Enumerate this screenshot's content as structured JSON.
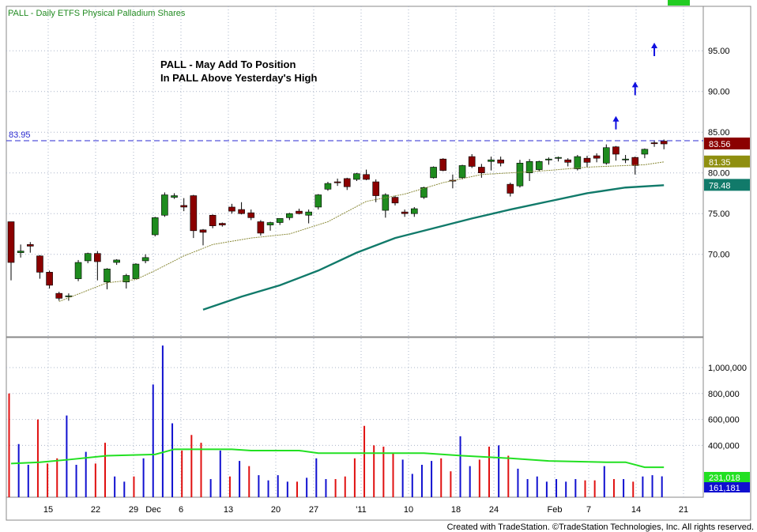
{
  "header": {
    "title": "PALL - Daily  ETFS Physical Palladium Shares",
    "annotation_line1": "PALL - May Add To Position",
    "annotation_line2": "In PALL Above Yesterday's High"
  },
  "footer": {
    "credit": "Created with TradeStation. ©TradeStation Technologies, Inc. All rights reserved."
  },
  "colors": {
    "up": "#1e8b1e",
    "down": "#8b0000",
    "ma_slow": "#117a6a",
    "ma_fast": "#8b8b3a",
    "vol_avg": "#22e022",
    "vol_up": "#1010d0",
    "vol_down": "#e01010",
    "resistance": "#2a2ad0",
    "arrow": "#1010e0",
    "grid": "#aab4c8",
    "status_box": "#22cc22"
  },
  "chart_data": [
    {
      "type": "candlestick",
      "title": "PALL - Daily  ETFS Physical Palladium Shares",
      "ylim": [
        66.5,
        99
      ],
      "yticks": [
        "70.00",
        "75.00",
        "80.00",
        "85.00",
        "90.00",
        "95.00"
      ],
      "xticks": [
        "15",
        "22",
        "29",
        "Dec",
        "6",
        "13",
        "20",
        "27",
        "'11",
        "10",
        "18",
        "24",
        "Feb",
        "7",
        "14",
        "21"
      ],
      "resistance": {
        "value": 83.95,
        "label": "83.95"
      },
      "price_labels": [
        {
          "label": "83.56",
          "value": 83.56,
          "series": "last"
        },
        {
          "label": "81.35",
          "value": 81.35,
          "series": "ma_fast"
        },
        {
          "label": "78.48",
          "value": 78.48,
          "series": "ma_slow"
        }
      ],
      "candles": [
        [
          74.0,
          74.0,
          66.8,
          69.0,
          "down"
        ],
        [
          70.4,
          71.2,
          69.6,
          70.2,
          "up"
        ],
        [
          71.2,
          71.5,
          70.2,
          71.0,
          "down"
        ],
        [
          69.8,
          69.9,
          67.0,
          67.8,
          "down"
        ],
        [
          67.8,
          68.0,
          65.8,
          66.2,
          "down"
        ],
        [
          65.2,
          65.4,
          64.3,
          64.6,
          "down"
        ],
        [
          64.8,
          65.2,
          64.3,
          64.9,
          "up"
        ],
        [
          67.0,
          69.3,
          66.7,
          69.0,
          "up"
        ],
        [
          69.2,
          70.2,
          68.9,
          70.1,
          "up"
        ],
        [
          70.1,
          70.4,
          66.8,
          69.1,
          "down"
        ],
        [
          68.2,
          68.3,
          65.7,
          66.6,
          "up"
        ],
        [
          69.0,
          69.4,
          68.7,
          69.3,
          "up"
        ],
        [
          66.6,
          67.6,
          65.8,
          67.4,
          "up"
        ],
        [
          67.0,
          68.9,
          67.0,
          68.8,
          "up"
        ],
        [
          69.2,
          70.0,
          68.9,
          69.6,
          "up"
        ],
        [
          72.4,
          74.6,
          72.2,
          74.5,
          "up"
        ],
        [
          74.8,
          77.6,
          74.6,
          77.3,
          "up"
        ],
        [
          77.2,
          77.5,
          76.8,
          77.0,
          "up"
        ],
        [
          76.0,
          76.9,
          75.3,
          75.8,
          "down"
        ],
        [
          77.2,
          77.3,
          72.0,
          72.9,
          "down"
        ],
        [
          73.0,
          73.1,
          71.1,
          72.7,
          "down"
        ],
        [
          74.8,
          74.9,
          73.2,
          73.5,
          "down"
        ],
        [
          73.8,
          73.9,
          73.4,
          73.6,
          "down"
        ],
        [
          75.8,
          76.2,
          75.0,
          75.3,
          "down"
        ],
        [
          75.5,
          76.4,
          74.9,
          75.0,
          "down"
        ],
        [
          75.1,
          75.5,
          74.2,
          74.5,
          "down"
        ],
        [
          74.0,
          74.2,
          72.3,
          72.6,
          "down"
        ],
        [
          73.6,
          74.0,
          72.9,
          73.9,
          "up"
        ],
        [
          73.9,
          74.4,
          73.6,
          74.4,
          "up"
        ],
        [
          74.5,
          75.1,
          74.2,
          75.0,
          "up"
        ],
        [
          75.3,
          75.6,
          74.9,
          75.0,
          "down"
        ],
        [
          74.8,
          75.5,
          73.8,
          75.2,
          "up"
        ],
        [
          75.8,
          77.4,
          75.5,
          77.3,
          "up"
        ],
        [
          78.0,
          78.9,
          77.8,
          78.7,
          "up"
        ],
        [
          78.8,
          79.3,
          78.4,
          78.9,
          "down"
        ],
        [
          79.3,
          79.4,
          77.9,
          78.3,
          "down"
        ],
        [
          79.2,
          80.0,
          79.0,
          79.9,
          "up"
        ],
        [
          79.8,
          80.4,
          79.1,
          79.2,
          "down"
        ],
        [
          78.9,
          79.2,
          76.4,
          77.2,
          "down"
        ],
        [
          77.3,
          77.5,
          74.5,
          75.4,
          "up"
        ],
        [
          77.0,
          77.2,
          76.0,
          76.3,
          "down"
        ],
        [
          75.2,
          75.5,
          74.6,
          75.0,
          "down"
        ],
        [
          75.0,
          75.8,
          74.6,
          75.6,
          "up"
        ],
        [
          77.0,
          78.3,
          76.8,
          78.2,
          "up"
        ],
        [
          79.4,
          80.8,
          79.3,
          80.7,
          "up"
        ],
        [
          81.7,
          81.8,
          80.2,
          80.3,
          "down"
        ],
        [
          79.1,
          79.8,
          78.1,
          79.0,
          "down"
        ],
        [
          79.4,
          81.0,
          79.2,
          80.9,
          "up"
        ],
        [
          82.0,
          82.3,
          80.6,
          80.8,
          "down"
        ],
        [
          80.7,
          81.1,
          79.4,
          80.0,
          "down"
        ],
        [
          81.4,
          82.0,
          80.3,
          81.6,
          "up"
        ],
        [
          81.6,
          82.0,
          80.8,
          81.2,
          "down"
        ],
        [
          78.6,
          78.8,
          77.1,
          77.5,
          "down"
        ],
        [
          78.4,
          81.6,
          78.2,
          81.2,
          "up"
        ],
        [
          80.0,
          81.7,
          79.0,
          81.4,
          "up"
        ],
        [
          80.4,
          81.5,
          80.2,
          81.4,
          "up"
        ],
        [
          81.7,
          81.9,
          81.0,
          81.6,
          "up"
        ],
        [
          81.8,
          82.0,
          81.4,
          81.9,
          "up"
        ],
        [
          81.6,
          81.8,
          80.8,
          81.3,
          "down"
        ],
        [
          80.5,
          82.2,
          80.3,
          82.0,
          "up"
        ],
        [
          81.8,
          82.1,
          80.7,
          81.3,
          "down"
        ],
        [
          81.8,
          82.4,
          81.3,
          82.1,
          "down"
        ],
        [
          81.2,
          83.5,
          81.0,
          83.1,
          "up"
        ],
        [
          83.2,
          83.3,
          81.5,
          82.3,
          "down"
        ],
        [
          81.6,
          82.2,
          81.2,
          81.7,
          "up"
        ],
        [
          81.9,
          82.0,
          79.8,
          80.9,
          "down"
        ],
        [
          82.3,
          83.0,
          81.8,
          82.9,
          "up"
        ],
        [
          83.7,
          84.0,
          83.2,
          83.6,
          "down"
        ],
        [
          83.9,
          84.1,
          82.9,
          83.56,
          "down"
        ]
      ],
      "ma_fast": [
        [
          5,
          64.2
        ],
        [
          10,
          66.5
        ],
        [
          13,
          66.9
        ],
        [
          15,
          68.0
        ],
        [
          18,
          69.8
        ],
        [
          21,
          71.2
        ],
        [
          25,
          72.0
        ],
        [
          29,
          72.5
        ],
        [
          33,
          74.0
        ],
        [
          37,
          76.5
        ],
        [
          41,
          77.4
        ],
        [
          45,
          78.8
        ],
        [
          49,
          79.8
        ],
        [
          52,
          80.0
        ],
        [
          56,
          80.3
        ],
        [
          60,
          80.7
        ],
        [
          64,
          80.9
        ],
        [
          66,
          81.0
        ],
        [
          68,
          81.35
        ]
      ],
      "ma_slow": [
        [
          20,
          63.2
        ],
        [
          24,
          64.8
        ],
        [
          28,
          66.2
        ],
        [
          32,
          68.0
        ],
        [
          36,
          70.2
        ],
        [
          40,
          72.0
        ],
        [
          44,
          73.2
        ],
        [
          48,
          74.4
        ],
        [
          52,
          75.5
        ],
        [
          56,
          76.5
        ],
        [
          60,
          77.5
        ],
        [
          64,
          78.2
        ],
        [
          68,
          78.48
        ]
      ],
      "arrows": [
        {
          "index": 63,
          "value": 86.7
        },
        {
          "index": 65,
          "value": 90.9
        },
        {
          "index": 67,
          "value": 95.7
        }
      ]
    },
    {
      "type": "bar",
      "title": "",
      "ylim": [
        0,
        1200000
      ],
      "yticks": [
        "400,000",
        "600,000",
        "800,000",
        "1,000,000"
      ],
      "last_labels": [
        {
          "label": "231,018",
          "value": 231018,
          "color": "#22e022"
        },
        {
          "label": "161,181",
          "value": 161181,
          "color": "#1010d0"
        }
      ],
      "volume": [
        [
          800000,
          "down"
        ],
        [
          410000,
          "up"
        ],
        [
          250000,
          "up"
        ],
        [
          600000,
          "down"
        ],
        [
          260000,
          "down"
        ],
        [
          300000,
          "down"
        ],
        [
          630000,
          "up"
        ],
        [
          250000,
          "up"
        ],
        [
          350000,
          "up"
        ],
        [
          260000,
          "down"
        ],
        [
          420000,
          "down"
        ],
        [
          160000,
          "up"
        ],
        [
          120000,
          "up"
        ],
        [
          160000,
          "down"
        ],
        [
          300000,
          "up"
        ],
        [
          870000,
          "up"
        ],
        [
          1170000,
          "up"
        ],
        [
          570000,
          "up"
        ],
        [
          360000,
          "down"
        ],
        [
          480000,
          "down"
        ],
        [
          420000,
          "down"
        ],
        [
          140000,
          "up"
        ],
        [
          360000,
          "up"
        ],
        [
          160000,
          "down"
        ],
        [
          280000,
          "up"
        ],
        [
          240000,
          "down"
        ],
        [
          170000,
          "up"
        ],
        [
          130000,
          "up"
        ],
        [
          170000,
          "up"
        ],
        [
          120000,
          "up"
        ],
        [
          120000,
          "down"
        ],
        [
          150000,
          "up"
        ],
        [
          300000,
          "up"
        ],
        [
          140000,
          "up"
        ],
        [
          140000,
          "down"
        ],
        [
          160000,
          "down"
        ],
        [
          300000,
          "down"
        ],
        [
          550000,
          "down"
        ],
        [
          400000,
          "down"
        ],
        [
          390000,
          "down"
        ],
        [
          340000,
          "down"
        ],
        [
          290000,
          "up"
        ],
        [
          180000,
          "up"
        ],
        [
          250000,
          "up"
        ],
        [
          280000,
          "up"
        ],
        [
          300000,
          "down"
        ],
        [
          200000,
          "down"
        ],
        [
          470000,
          "up"
        ],
        [
          240000,
          "up"
        ],
        [
          290000,
          "down"
        ],
        [
          390000,
          "down"
        ],
        [
          400000,
          "up"
        ],
        [
          320000,
          "down"
        ],
        [
          220000,
          "up"
        ],
        [
          140000,
          "up"
        ],
        [
          160000,
          "up"
        ],
        [
          120000,
          "up"
        ],
        [
          140000,
          "up"
        ],
        [
          120000,
          "up"
        ],
        [
          140000,
          "up"
        ],
        [
          130000,
          "down"
        ],
        [
          130000,
          "down"
        ],
        [
          240000,
          "up"
        ],
        [
          140000,
          "down"
        ],
        [
          140000,
          "up"
        ],
        [
          120000,
          "down"
        ],
        [
          160000,
          "up"
        ],
        [
          170000,
          "up"
        ],
        [
          161181,
          "up"
        ]
      ],
      "volume_avg": [
        [
          0,
          260000
        ],
        [
          3,
          270000
        ],
        [
          6,
          290000
        ],
        [
          10,
          320000
        ],
        [
          15,
          330000
        ],
        [
          17,
          370000
        ],
        [
          23,
          370000
        ],
        [
          25,
          360000
        ],
        [
          30,
          360000
        ],
        [
          32,
          340000
        ],
        [
          40,
          340000
        ],
        [
          43,
          340000
        ],
        [
          47,
          320000
        ],
        [
          52,
          300000
        ],
        [
          56,
          280000
        ],
        [
          62,
          270000
        ],
        [
          64,
          270000
        ],
        [
          66,
          231018
        ],
        [
          68,
          231018
        ]
      ]
    }
  ]
}
